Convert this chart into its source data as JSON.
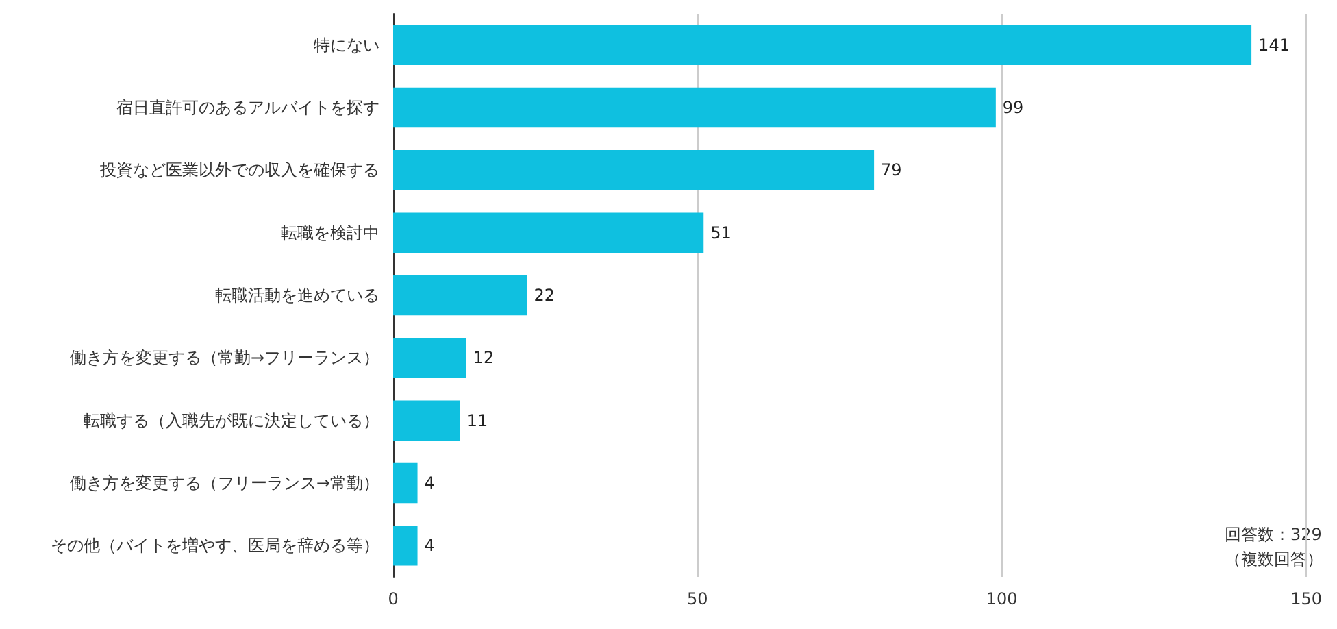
{
  "chart_data": {
    "type": "bar",
    "orientation": "horizontal",
    "categories": [
      "特にない",
      "宿日直許可のあるアルバイトを探す",
      "投資など医業以外での収入を確保する",
      "転職を検討中",
      "転職活動を進めている",
      "働き方を変更する（常勤→フリーランス）",
      "転職する（入職先が既に決定している）",
      "働き方を変更する（フリーランス→常勤）",
      "その他（バイトを増やす、医局を辞める等）"
    ],
    "values": [
      141,
      99,
      79,
      51,
      22,
      12,
      11,
      4,
      4
    ],
    "color": "#0fc0e0",
    "xlim": [
      0,
      150
    ],
    "xticks": [
      0,
      50,
      100,
      150
    ],
    "grid": "x",
    "data_labels": true,
    "annotations": [
      "回答数：329",
      "（複数回答）"
    ]
  }
}
